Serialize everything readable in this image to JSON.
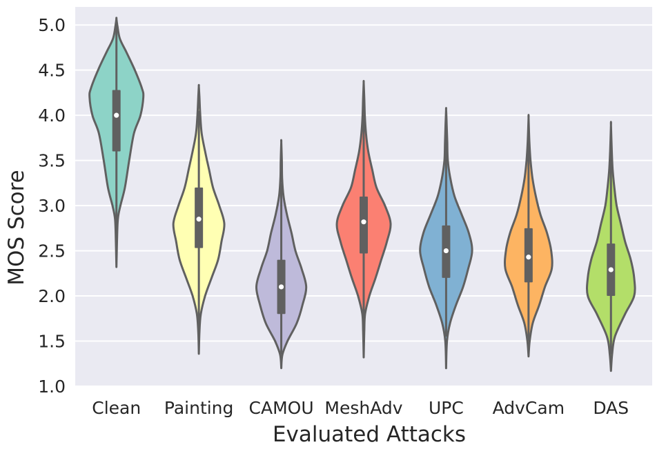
{
  "chart_data": {
    "type": "violin",
    "xlabel": "Evaluated Attacks",
    "ylabel": "MOS Score",
    "ylim": [
      1.0,
      5.2
    ],
    "yticks": [
      1.0,
      1.5,
      2.0,
      2.5,
      3.0,
      3.5,
      4.0,
      4.5,
      5.0
    ],
    "ytick_labels": [
      "1.0",
      "1.5",
      "2.0",
      "2.5",
      "3.0",
      "3.5",
      "4.0",
      "4.5",
      "5.0"
    ],
    "grid": true,
    "legend": "none",
    "categories": [
      "Clean",
      "Painting",
      "CAMOU",
      "MeshAdv",
      "UPC",
      "AdvCam",
      "DAS"
    ],
    "series": [
      {
        "category": "Clean",
        "color": "#8dd3c7",
        "min": 2.32,
        "max": 5.07,
        "q1": 3.6,
        "median": 4.0,
        "q3": 4.28,
        "whisker_low": 2.55,
        "whisker_high": 5.05,
        "profile": [
          [
            2.32,
            0.0
          ],
          [
            2.6,
            0.02
          ],
          [
            2.85,
            0.05
          ],
          [
            3.0,
            0.14
          ],
          [
            3.2,
            0.3
          ],
          [
            3.5,
            0.45
          ],
          [
            3.8,
            0.62
          ],
          [
            4.0,
            0.85
          ],
          [
            4.2,
            0.95
          ],
          [
            4.3,
            0.9
          ],
          [
            4.5,
            0.65
          ],
          [
            4.7,
            0.35
          ],
          [
            4.85,
            0.12
          ],
          [
            5.0,
            0.03
          ],
          [
            5.07,
            0.0
          ]
        ]
      },
      {
        "category": "Painting",
        "color": "#ffffb3",
        "min": 1.36,
        "max": 4.32,
        "q1": 2.53,
        "median": 2.85,
        "q3": 3.2,
        "whisker_low": 1.5,
        "whisker_high": 4.05,
        "profile": [
          [
            1.36,
            0.0
          ],
          [
            1.6,
            0.02
          ],
          [
            1.8,
            0.07
          ],
          [
            2.0,
            0.22
          ],
          [
            2.2,
            0.45
          ],
          [
            2.4,
            0.68
          ],
          [
            2.6,
            0.8
          ],
          [
            2.8,
            0.9
          ],
          [
            3.0,
            0.72
          ],
          [
            3.2,
            0.5
          ],
          [
            3.4,
            0.36
          ],
          [
            3.6,
            0.22
          ],
          [
            3.8,
            0.1
          ],
          [
            4.0,
            0.05
          ],
          [
            4.2,
            0.02
          ],
          [
            4.32,
            0.0
          ]
        ]
      },
      {
        "category": "CAMOU",
        "color": "#bebada",
        "min": 1.2,
        "max": 3.7,
        "q1": 1.8,
        "median": 2.1,
        "q3": 2.4,
        "whisker_low": 1.35,
        "whisker_high": 3.25,
        "profile": [
          [
            1.2,
            0.0
          ],
          [
            1.35,
            0.04
          ],
          [
            1.5,
            0.22
          ],
          [
            1.7,
            0.55
          ],
          [
            1.9,
            0.75
          ],
          [
            2.1,
            0.88
          ],
          [
            2.3,
            0.72
          ],
          [
            2.5,
            0.5
          ],
          [
            2.7,
            0.36
          ],
          [
            2.9,
            0.2
          ],
          [
            3.1,
            0.08
          ],
          [
            3.3,
            0.03
          ],
          [
            3.5,
            0.02
          ],
          [
            3.7,
            0.0
          ]
        ]
      },
      {
        "category": "MeshAdv",
        "color": "#fb8072",
        "min": 1.32,
        "max": 4.36,
        "q1": 2.47,
        "median": 2.82,
        "q3": 3.1,
        "whisker_low": 1.6,
        "whisker_high": 4.0,
        "profile": [
          [
            1.32,
            0.0
          ],
          [
            1.6,
            0.02
          ],
          [
            1.8,
            0.05
          ],
          [
            2.0,
            0.2
          ],
          [
            2.2,
            0.42
          ],
          [
            2.4,
            0.62
          ],
          [
            2.6,
            0.82
          ],
          [
            2.8,
            0.95
          ],
          [
            3.0,
            0.75
          ],
          [
            3.2,
            0.45
          ],
          [
            3.4,
            0.3
          ],
          [
            3.6,
            0.16
          ],
          [
            3.8,
            0.08
          ],
          [
            4.0,
            0.04
          ],
          [
            4.2,
            0.02
          ],
          [
            4.36,
            0.0
          ]
        ]
      },
      {
        "category": "UPC",
        "color": "#80b1d3",
        "min": 1.2,
        "max": 4.06,
        "q1": 2.2,
        "median": 2.5,
        "q3": 2.78,
        "whisker_low": 1.55,
        "whisker_high": 3.75,
        "profile": [
          [
            1.2,
            0.0
          ],
          [
            1.5,
            0.03
          ],
          [
            1.7,
            0.14
          ],
          [
            1.9,
            0.35
          ],
          [
            2.1,
            0.6
          ],
          [
            2.3,
            0.78
          ],
          [
            2.5,
            0.92
          ],
          [
            2.7,
            0.8
          ],
          [
            2.9,
            0.55
          ],
          [
            3.1,
            0.3
          ],
          [
            3.3,
            0.15
          ],
          [
            3.5,
            0.06
          ],
          [
            3.7,
            0.04
          ],
          [
            3.9,
            0.02
          ],
          [
            4.06,
            0.0
          ]
        ]
      },
      {
        "category": "AdvCam",
        "color": "#fdb462",
        "min": 1.33,
        "max": 3.97,
        "q1": 2.15,
        "median": 2.43,
        "q3": 2.75,
        "whisker_low": 1.5,
        "whisker_high": 3.7,
        "profile": [
          [
            1.33,
            0.0
          ],
          [
            1.5,
            0.04
          ],
          [
            1.7,
            0.15
          ],
          [
            1.9,
            0.38
          ],
          [
            2.1,
            0.58
          ],
          [
            2.3,
            0.82
          ],
          [
            2.5,
            0.8
          ],
          [
            2.7,
            0.65
          ],
          [
            2.9,
            0.42
          ],
          [
            3.1,
            0.26
          ],
          [
            3.3,
            0.14
          ],
          [
            3.5,
            0.07
          ],
          [
            3.7,
            0.03
          ],
          [
            3.97,
            0.0
          ]
        ]
      },
      {
        "category": "DAS",
        "color": "#b3de69",
        "min": 1.17,
        "max": 3.89,
        "q1": 2.0,
        "median": 2.29,
        "q3": 2.58,
        "whisker_low": 1.35,
        "whisker_high": 3.65,
        "profile": [
          [
            1.17,
            0.0
          ],
          [
            1.35,
            0.04
          ],
          [
            1.55,
            0.14
          ],
          [
            1.8,
            0.5
          ],
          [
            2.0,
            0.82
          ],
          [
            2.2,
            0.82
          ],
          [
            2.4,
            0.7
          ],
          [
            2.6,
            0.5
          ],
          [
            2.8,
            0.35
          ],
          [
            3.0,
            0.2
          ],
          [
            3.2,
            0.12
          ],
          [
            3.4,
            0.06
          ],
          [
            3.6,
            0.03
          ],
          [
            3.89,
            0.0
          ]
        ]
      }
    ]
  }
}
